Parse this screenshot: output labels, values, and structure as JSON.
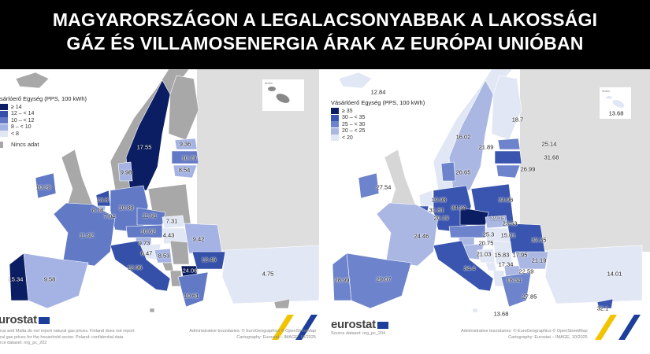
{
  "title": {
    "line1": "MAGYARORSZÁGON A LEGALACSONYABBAK A LAKOSSÁGI",
    "line2": "GÁZ ÉS VILLAMOSENERGIA ÁRAK AZ EURÓPAI UNIÓBAN"
  },
  "left_map": {
    "legend_title": "sárlóerő Egység (PPS, 100 kWh)",
    "legend": [
      {
        "label": "≥ 14",
        "color": "#0c1e63",
        "min": 14
      },
      {
        "label": "12 – < 14",
        "color": "#3450a8",
        "min": 12
      },
      {
        "label": "10 – < 12",
        "color": "#6279c6",
        "min": 10
      },
      {
        "label": "8 – < 10",
        "color": "#a4b3e3",
        "min": 8
      },
      {
        "label": "< 8",
        "color": "#e2e7f6",
        "min": 0
      }
    ],
    "no_data_label": "Nincs adat",
    "no_data_color": "#a8a8a8",
    "inset_label": "Malta",
    "values": {
      "SE": "17.55",
      "EE": "9.36",
      "LV": "10.79",
      "LT": "8.54",
      "DK": "9.98",
      "IE": "10.29",
      "NL": "13.8",
      "DE": "10.88",
      "BE": "8.18",
      "LU": "7.04",
      "CZ": "11.91",
      "SK": "7.31",
      "AT": "10.62",
      "HU": "4.43",
      "RO": "9.42",
      "FR": "11.92",
      "SI": "9.73",
      "HR": "6.47",
      "BA": "8.53",
      "BG": "12.46",
      "IT": "12.96",
      "MK": "24.06",
      "PT": "15.34",
      "ES": "9.58",
      "GR": "10.61",
      "TR": "4.75"
    },
    "logo": "eurostat",
    "note_lines": [
      "rus and Malta do not report natural gas prices. Finland does not report",
      "ral gas prices for the household sector. Poland: confidential data.",
      "rce dataset: nrg_pc_202"
    ],
    "credit_lines": [
      "Administrative boundaries: © EuroGeographics © OpenStreetMap",
      "Cartography: Eurostat – IMAGE, 10/2025"
    ]
  },
  "right_map": {
    "legend_title": "Vásárlóerő Egység (PPS, 100 kWh)",
    "legend": [
      {
        "label": "≥ 35",
        "color": "#0c1e63",
        "min": 35
      },
      {
        "label": "30 – < 35",
        "color": "#3a55b0",
        "min": 30
      },
      {
        "label": "25 – < 30",
        "color": "#6d83cc",
        "min": 25
      },
      {
        "label": "20 – < 25",
        "color": "#aab7e3",
        "min": 20
      },
      {
        "label": "< 20",
        "color": "#e2e7f5",
        "min": 0
      }
    ],
    "inset_label": "Malta",
    "inset_value": "13.68",
    "values": {
      "IS": "12.84",
      "FI": "18.7",
      "NO": "16.02",
      "SE": "21.89",
      "EE": "25.14",
      "LV": "31.68",
      "LT": "26.99",
      "DK": "26.65",
      "IE": "27.54",
      "NL": "19.98",
      "DE": "34.34",
      "PL": "34.96",
      "BE": "31.81",
      "LU": "20.19",
      "CZ": "39.16",
      "SK": "23.53",
      "AT": "25.3",
      "HU": "15.01",
      "RO": "32.35",
      "FR": "24.46",
      "SI": "20.75",
      "HR": "21.03",
      "BA": "15.83",
      "RS": "17.95",
      "BG": "21.19",
      "ME": "17.34",
      "MK": "22.59",
      "IT": "34.4",
      "AL": "18.34",
      "PT": "28.99",
      "ES": "29.07",
      "TR": "14.01",
      "GR": "27.85",
      "CY": "32.1",
      "MT": "13.68"
    },
    "logo": "eurostat",
    "note_lines": [
      "Source dataset: nrg_pc_204"
    ],
    "credit_lines": [
      "Administrative boundaries: © EuroGeographics © OpenStreetMap",
      "Cartography: Eurostat – IMAGE, 10/2025"
    ]
  }
}
